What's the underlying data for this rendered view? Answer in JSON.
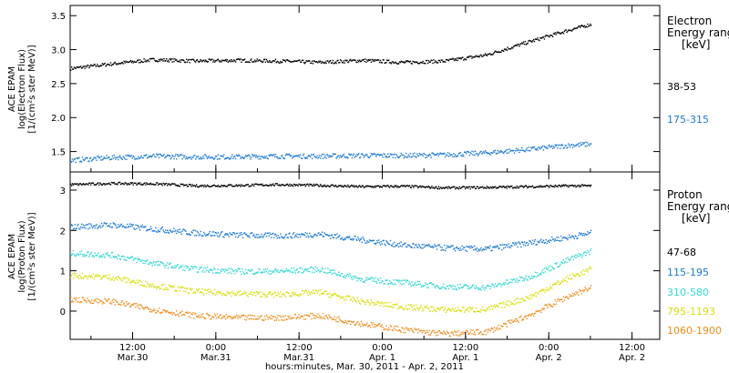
{
  "x_axis": {
    "title": "hours:minutes, Mar. 30, 2011 - Apr.  2, 2011",
    "tick_labels": [
      {
        "time": "12:00",
        "date": "Mar.30",
        "hours": 12
      },
      {
        "time": "0:00",
        "date": "Mar.31",
        "hours": 24
      },
      {
        "time": "12:00",
        "date": "Mar.31",
        "hours": 36
      },
      {
        "time": "0:00",
        "date": "Apr. 1",
        "hours": 48
      },
      {
        "time": "12:00",
        "date": "Apr. 1",
        "hours": 60
      },
      {
        "time": "0:00",
        "date": "Apr. 2",
        "hours": 72
      },
      {
        "time": "12:00",
        "date": "Apr. 2",
        "hours": 84
      }
    ],
    "range_hours": [
      3,
      88
    ]
  },
  "chart_data": [
    {
      "type": "scatter",
      "panel": "electron",
      "ylabel_lines": [
        "ACE EPAM",
        "log(Electron Flux)",
        "[1/(cm²s ster MeV)]"
      ],
      "ylim": [
        1.2,
        3.65
      ],
      "yticks": [
        "1.5",
        "2.0",
        "2.5",
        "3.0",
        "3.5"
      ],
      "legend_title": [
        "Electron",
        "Energy range",
        "[keV]"
      ],
      "series": [
        {
          "name": "38-53",
          "color": "#000000",
          "x": [
            3,
            9,
            15,
            21,
            27,
            33,
            39,
            45,
            51,
            57,
            63,
            69,
            75,
            78
          ],
          "values": [
            2.73,
            2.8,
            2.86,
            2.84,
            2.85,
            2.84,
            2.82,
            2.85,
            2.82,
            2.84,
            2.93,
            3.12,
            3.3,
            3.38
          ]
        },
        {
          "name": "175-315",
          "color": "#1a78d6",
          "x": [
            3,
            9,
            15,
            21,
            27,
            33,
            39,
            45,
            51,
            57,
            63,
            69,
            75,
            78
          ],
          "values": [
            1.38,
            1.42,
            1.44,
            1.43,
            1.43,
            1.44,
            1.44,
            1.45,
            1.45,
            1.46,
            1.49,
            1.54,
            1.6,
            1.62
          ]
        }
      ]
    },
    {
      "type": "scatter",
      "panel": "proton",
      "ylabel_lines": [
        "ACE EPAM",
        "log(Proton Flux)",
        "[1/(cm²s ster MeV)]"
      ],
      "ylim": [
        -0.7,
        3.45
      ],
      "yticks": [
        "0",
        "1",
        "2",
        "3"
      ],
      "legend_title": [
        "Proton",
        "Energy range",
        "[keV]"
      ],
      "series": [
        {
          "name": "47-68",
          "color": "#000000",
          "x": [
            3,
            9,
            15,
            21,
            27,
            33,
            39,
            45,
            51,
            57,
            63,
            69,
            75,
            78
          ],
          "values": [
            3.15,
            3.18,
            3.17,
            3.12,
            3.13,
            3.15,
            3.13,
            3.1,
            3.11,
            3.07,
            3.08,
            3.1,
            3.12,
            3.12
          ]
        },
        {
          "name": "115-195",
          "color": "#1a78d6",
          "x": [
            3,
            9,
            15,
            21,
            27,
            33,
            39,
            45,
            51,
            57,
            63,
            69,
            75,
            78
          ],
          "values": [
            2.1,
            2.15,
            2.05,
            1.95,
            1.9,
            1.88,
            1.92,
            1.78,
            1.65,
            1.58,
            1.55,
            1.7,
            1.85,
            1.95
          ]
        },
        {
          "name": "310-580",
          "color": "#2fd8d4",
          "x": [
            3,
            9,
            15,
            21,
            27,
            33,
            39,
            45,
            51,
            57,
            63,
            69,
            75,
            78
          ],
          "values": [
            1.45,
            1.4,
            1.2,
            1.05,
            1.0,
            1.0,
            1.05,
            0.8,
            0.72,
            0.62,
            0.6,
            0.85,
            1.3,
            1.5
          ]
        },
        {
          "name": "795-1193",
          "color": "#d6df0a",
          "x": [
            3,
            9,
            15,
            21,
            27,
            33,
            39,
            45,
            51,
            57,
            63,
            69,
            75,
            78
          ],
          "values": [
            0.9,
            0.85,
            0.65,
            0.5,
            0.45,
            0.42,
            0.48,
            0.25,
            0.12,
            0.05,
            0.05,
            0.35,
            0.85,
            1.05
          ]
        },
        {
          "name": "1060-1900",
          "color": "#f08c1c",
          "x": [
            3,
            9,
            15,
            21,
            27,
            33,
            39,
            45,
            51,
            57,
            63,
            69,
            75,
            78
          ],
          "values": [
            0.3,
            0.25,
            0.05,
            -0.1,
            -0.15,
            -0.15,
            -0.1,
            -0.3,
            -0.45,
            -0.55,
            -0.5,
            -0.1,
            0.4,
            0.6
          ]
        }
      ]
    }
  ]
}
